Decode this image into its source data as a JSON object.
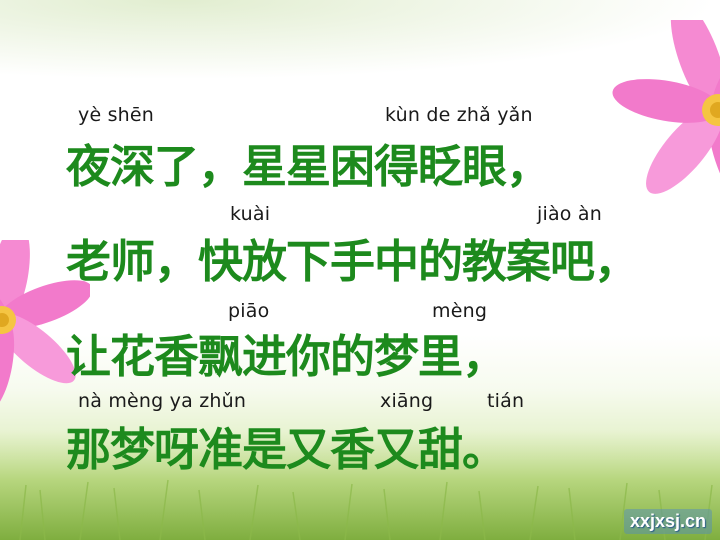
{
  "poem": {
    "lines": [
      {
        "pinyin": [
          "yè shēn",
          "kùn  de   zhǎ  yǎn"
        ],
        "text": "夜深了，星星困得眨眼，"
      },
      {
        "pinyin": [
          "kuài",
          "jiào  àn"
        ],
        "text": "老师，快放下手中的教案吧，"
      },
      {
        "pinyin": [
          "piāo",
          "mèng"
        ],
        "text": "让花香飘进你的梦里，"
      },
      {
        "pinyin": [
          "nà  mèng  ya  zhǔn",
          "xiāng",
          "tián"
        ],
        "text": "那梦呀准是又香又甜。"
      }
    ]
  },
  "watermark": {
    "text": "xxjxsj.cn"
  },
  "colors": {
    "hanzi": "#1d8a1d",
    "pinyin": "#1a1a1a",
    "petal": "#f06ec8",
    "center": "#f5c542"
  },
  "decorations": [
    "flower-top-right",
    "flower-left",
    "grass-meadow"
  ]
}
